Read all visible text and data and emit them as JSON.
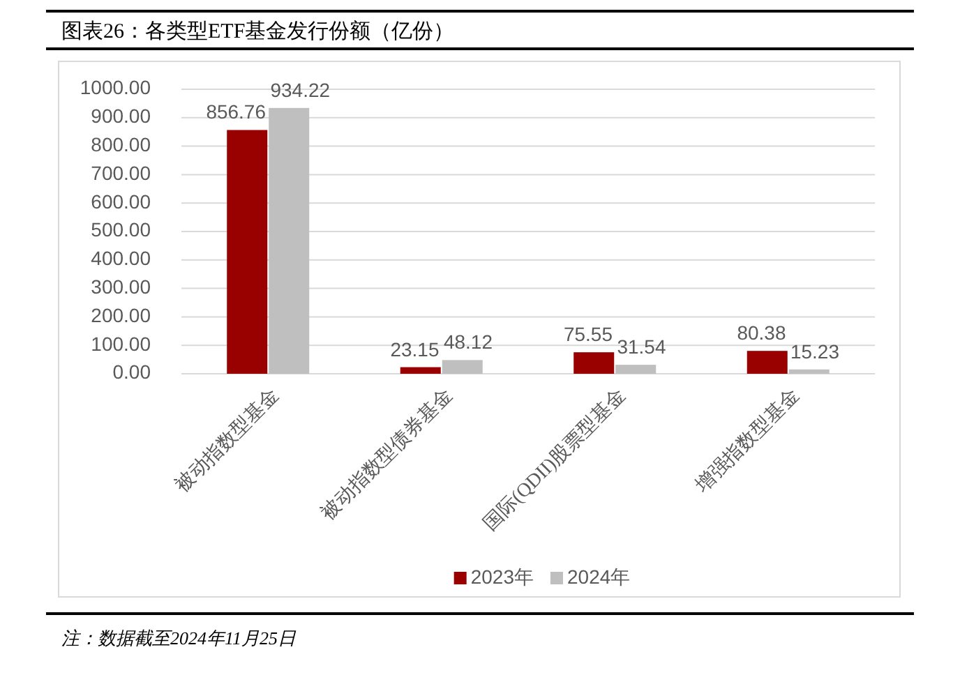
{
  "chart_data": {
    "type": "bar",
    "title": "图表26：各类型ETF基金发行份额（亿份）",
    "categories": [
      "被动指数型基金",
      "被动指数型债券基金",
      "国际(QDII)股票型基金",
      "增强指数型基金"
    ],
    "series": [
      {
        "name": "2023年",
        "color": "#990000",
        "values": [
          856.76,
          23.15,
          75.55,
          80.38
        ]
      },
      {
        "name": "2024年",
        "color": "#bfbfbf",
        "values": [
          934.22,
          48.12,
          31.54,
          15.23
        ]
      }
    ],
    "ylim": [
      0,
      1000
    ],
    "yticks": [
      {
        "value": 0,
        "label": "0.00"
      },
      {
        "value": 100,
        "label": "100.00"
      },
      {
        "value": 200,
        "label": "200.00"
      },
      {
        "value": 300,
        "label": "300.00"
      },
      {
        "value": 400,
        "label": "400.00"
      },
      {
        "value": 500,
        "label": "500.00"
      },
      {
        "value": 600,
        "label": "600.00"
      },
      {
        "value": 700,
        "label": "700.00"
      },
      {
        "value": 800,
        "label": "800.00"
      },
      {
        "value": 900,
        "label": "900.00"
      },
      {
        "value": 1000,
        "label": "1000.00"
      }
    ],
    "grid": "y",
    "legend": "bottom",
    "data_labels": true,
    "annotations": [
      "注：数据截至2024年11月25日"
    ]
  }
}
